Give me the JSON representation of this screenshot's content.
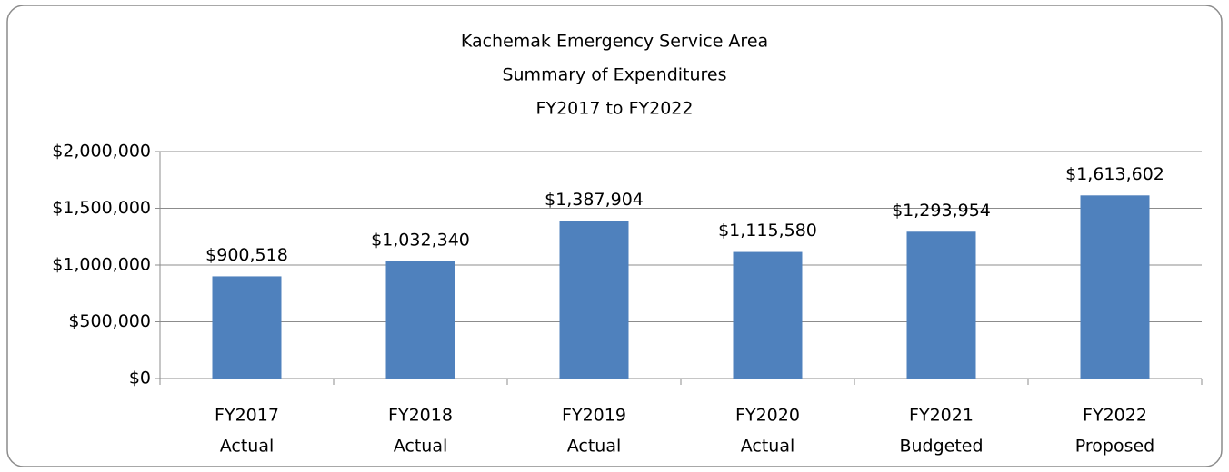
{
  "chart_data": {
    "type": "bar",
    "title": [
      "Kachemak Emergency Service Area",
      "Summary of Expenditures",
      "FY2017 to FY2022"
    ],
    "categories": [
      [
        "FY2017",
        "Actual"
      ],
      [
        "FY2018",
        "Actual"
      ],
      [
        "FY2019",
        "Actual"
      ],
      [
        "FY2020",
        "Actual"
      ],
      [
        "FY2021",
        "Budgeted"
      ],
      [
        "FY2022",
        "Proposed"
      ]
    ],
    "values": [
      900518,
      1032340,
      1387904,
      1115580,
      1293954,
      1613602
    ],
    "value_labels": [
      "$900,518",
      "$1,032,340",
      "$1,387,904",
      "$1,115,580",
      "$1,293,954",
      "$1,613,602"
    ],
    "color": "#4f81bd",
    "ylim": [
      0,
      2000000
    ],
    "yticks": [
      {
        "value": 0,
        "label": "$0"
      },
      {
        "value": 500000,
        "label": "$500,000"
      },
      {
        "value": 1000000,
        "label": "$1,000,000"
      },
      {
        "value": 1500000,
        "label": "$1,500,000"
      },
      {
        "value": 2000000,
        "label": "$2,000,000"
      }
    ],
    "grid": true
  }
}
